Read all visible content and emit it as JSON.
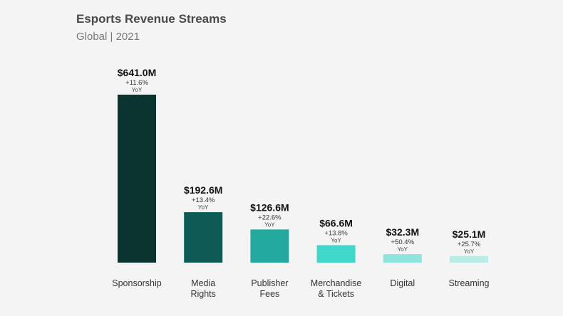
{
  "chart_data": {
    "type": "bar",
    "title": "Esports Revenue Streams",
    "subtitle": "Global | 2021",
    "categories": [
      [
        "Sponsorship"
      ],
      [
        "Media",
        "Rights"
      ],
      [
        "Publisher",
        "Fees"
      ],
      [
        "Merchandise",
        "& Tickets"
      ],
      [
        "Digital"
      ],
      [
        "Streaming"
      ]
    ],
    "values": [
      641.0,
      192.6,
      126.6,
      66.6,
      32.3,
      25.1
    ],
    "value_labels": [
      "$641.0M",
      "$192.6M",
      "$126.6M",
      "$66.6M",
      "$32.3M",
      "$25.1M"
    ],
    "growth_labels": [
      "+11.6%",
      "+13.4%",
      "+22.6%",
      "+13.8%",
      "+50.4%",
      "+25.7%"
    ],
    "growth_suffix": "YoY",
    "unit": "USD millions",
    "colors": [
      "#0b3431",
      "#0e5a54",
      "#23a99d",
      "#3fd7c9",
      "#8fe4dd",
      "#b7ece7"
    ],
    "ylim": [
      0,
      641.0
    ],
    "grid": false,
    "legend": "none"
  }
}
